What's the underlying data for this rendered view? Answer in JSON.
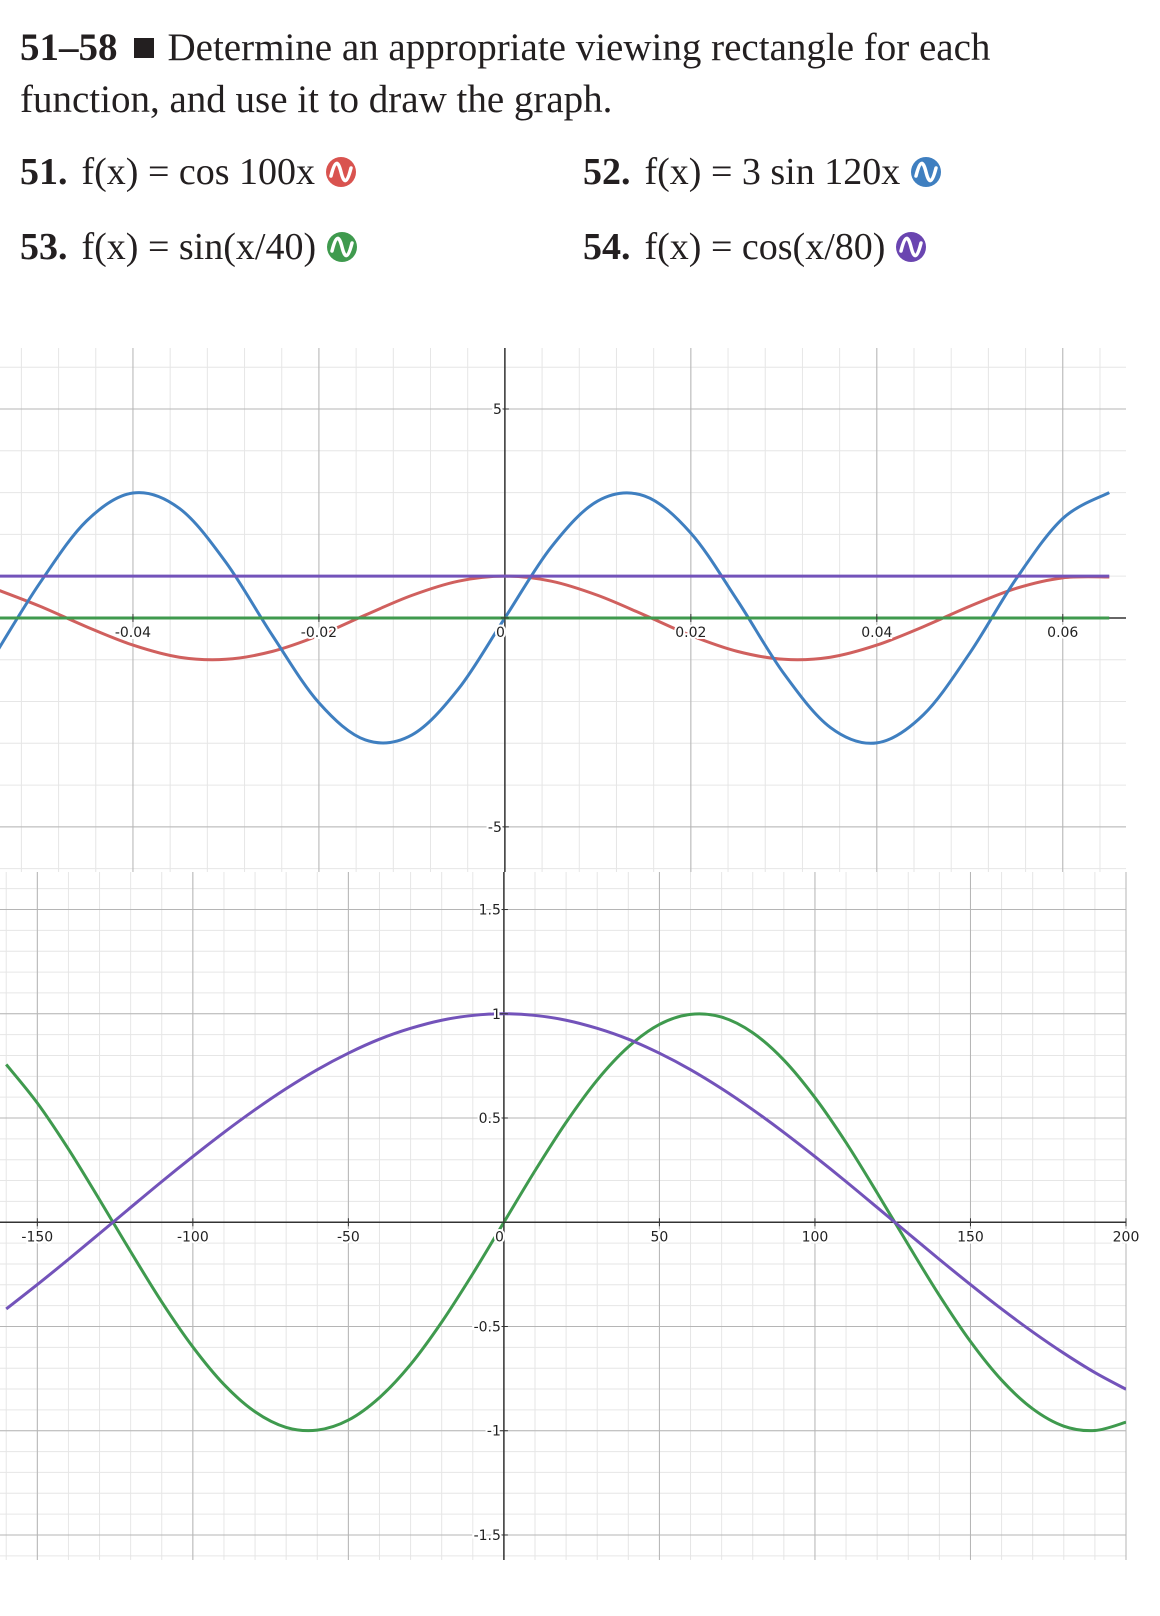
{
  "header": {
    "label": "51–58",
    "text": "Determine an appropriate viewing rectangle for each function, and use it to draw the graph."
  },
  "problems": [
    {
      "number": "51.",
      "expression": "f(x) = cos 100x",
      "color": "#d9534f"
    },
    {
      "number": "52.",
      "expression": "f(x) = 3 sin 120x",
      "color": "#3f7fc0"
    },
    {
      "number": "53.",
      "expression": "f(x) = sin(x/40)",
      "color": "#3f9a4e"
    },
    {
      "number": "54.",
      "expression": "f(x) = cos(x/80)",
      "color": "#6a45b0"
    }
  ],
  "chart_data": [
    {
      "type": "line",
      "x": [
        -0.055,
        -0.05,
        -0.045,
        -0.04,
        -0.035,
        -0.03,
        -0.025,
        -0.02,
        -0.015,
        -0.01,
        -0.005,
        0,
        0.005,
        0.01,
        0.015,
        0.02,
        0.025,
        0.03,
        0.035,
        0.04,
        0.045,
        0.05,
        0.055,
        0.06,
        0.065
      ],
      "series": [
        {
          "color": "#d0605e",
          "values": [
            0.71,
            0.28,
            -0.21,
            -0.65,
            -0.94,
            -0.99,
            -0.8,
            -0.42,
            0.07,
            0.54,
            0.88,
            1,
            0.88,
            0.54,
            0.07,
            -0.42,
            -0.8,
            -0.99,
            -0.94,
            -0.65,
            -0.21,
            0.28,
            0.71,
            0.96,
            0.98
          ]
        },
        {
          "color": "#3f7fc0",
          "values": [
            -0.94,
            0.84,
            2.32,
            2.99,
            2.62,
            1.33,
            -0.42,
            -2.03,
            -2.92,
            -2.8,
            -1.7,
            0,
            1.7,
            2.8,
            2.92,
            2.03,
            0.42,
            -1.33,
            -2.62,
            -2.99,
            -2.32,
            -0.84,
            0.94,
            2.38,
            3
          ]
        },
        {
          "color": "#3f9a4e",
          "values": [
            0,
            0,
            0,
            0,
            0,
            0,
            0,
            0,
            0,
            0,
            0,
            0,
            0,
            0,
            0,
            0,
            0,
            0,
            0,
            0,
            0,
            0,
            0,
            0,
            0
          ]
        },
        {
          "color": "#7353ba",
          "values": [
            1,
            1,
            1,
            1,
            1,
            1,
            1,
            1,
            1,
            1,
            1,
            1,
            1,
            1,
            1,
            1,
            1,
            1,
            1,
            1,
            1,
            1,
            1,
            1,
            1
          ]
        }
      ],
      "xlim": [
        -0.0543,
        0.0668
      ],
      "ylim": [
        -6.08,
        6.46
      ],
      "xticks": [
        -0.04,
        -0.02,
        0,
        0.02,
        0.04,
        0.06
      ],
      "yticks": [
        -5,
        0,
        5
      ],
      "grid": true
    },
    {
      "type": "line",
      "x": [
        -160,
        -150,
        -140,
        -130,
        -120,
        -110,
        -100,
        -90,
        -80,
        -70,
        -60,
        -50,
        -40,
        -30,
        -20,
        -10,
        0,
        10,
        20,
        30,
        40,
        50,
        60,
        70,
        80,
        90,
        100,
        110,
        120,
        130,
        140,
        150,
        160,
        170,
        180,
        190,
        200
      ],
      "series": [
        {
          "color": "#3f9a4e",
          "values": [
            0.757,
            0.572,
            0.351,
            0.108,
            -0.141,
            -0.382,
            -0.598,
            -0.778,
            -0.909,
            -0.984,
            -0.997,
            -0.949,
            -0.841,
            -0.682,
            -0.479,
            -0.247,
            0,
            0.247,
            0.479,
            0.682,
            0.841,
            0.949,
            0.997,
            0.984,
            0.909,
            0.778,
            0.598,
            0.382,
            0.141,
            -0.108,
            -0.351,
            -0.572,
            -0.757,
            -0.895,
            -0.978,
            -0.999,
            -0.959
          ]
        },
        {
          "color": "#7353ba",
          "values": [
            -0.416,
            -0.299,
            -0.178,
            -0.054,
            0.071,
            0.195,
            0.315,
            0.431,
            0.54,
            0.641,
            0.732,
            0.811,
            0.878,
            0.93,
            0.969,
            0.992,
            1,
            0.992,
            0.969,
            0.93,
            0.878,
            0.811,
            0.732,
            0.641,
            0.54,
            0.431,
            0.315,
            0.195,
            0.071,
            -0.054,
            -0.178,
            -0.299,
            -0.416,
            -0.526,
            -0.628,
            -0.721,
            -0.801
          ]
        }
      ],
      "xlim": [
        -162,
        200
      ],
      "ylim": [
        -1.62,
        1.68
      ],
      "xticks": [
        -150,
        -100,
        -50,
        0,
        50,
        100,
        150,
        200
      ],
      "yticks": [
        -1.5,
        -1,
        -0.5,
        0,
        0.5,
        1,
        1.5
      ],
      "grid": true
    }
  ]
}
